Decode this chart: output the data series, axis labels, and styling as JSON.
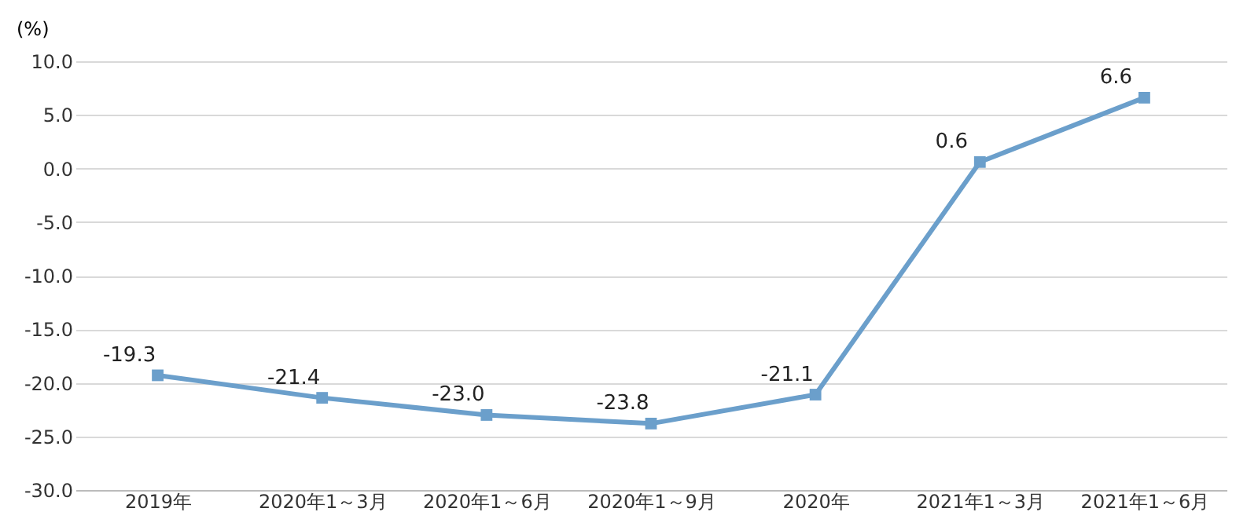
{
  "chart_data": {
    "type": "line",
    "ylabel": "(%)",
    "categories": [
      "2019年",
      "2020年1～3月",
      "2020年1～6月",
      "2020年1～9月",
      "2020年",
      "2021年1～3月",
      "2021年1～6月"
    ],
    "series": [
      {
        "color": "#6b9fcb",
        "values": [
          -19.3,
          -21.4,
          -23.0,
          -23.8,
          -21.1,
          0.6,
          6.6
        ],
        "value_labels": [
          "-19.3",
          "-21.4",
          "-23.0",
          "-23.8",
          "-21.1",
          "0.6",
          "6.6"
        ]
      }
    ],
    "ylim": [
      -30,
      10
    ],
    "yticks": [
      {
        "value": -30,
        "label": "-30.0"
      },
      {
        "value": -25,
        "label": "-25.0"
      },
      {
        "value": -20,
        "label": "-20.0"
      },
      {
        "value": -15,
        "label": "-15.0"
      },
      {
        "value": -10,
        "label": "-10.0"
      },
      {
        "value": -5,
        "label": "-5.0"
      },
      {
        "value": 0,
        "label": "0.0"
      },
      {
        "value": 5,
        "label": "5.0"
      },
      {
        "value": 10,
        "label": "10.0"
      }
    ],
    "grid": "y",
    "marker": "square",
    "line_style": "solid",
    "data_labels": true
  }
}
